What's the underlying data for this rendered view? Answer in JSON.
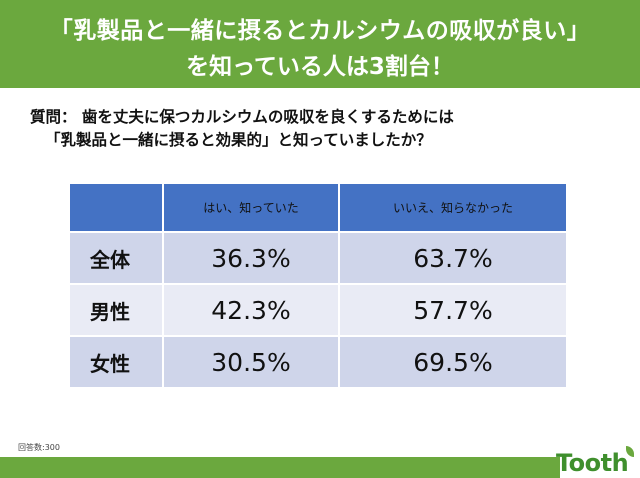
{
  "banner": {
    "line1": "「乳製品と一緒に摂るとカルシウムの吸収が良い」",
    "line2": "を知っている人は3割台！"
  },
  "question": {
    "label": "質問：",
    "line1": "歯を丈夫に保つカルシウムの吸収を良くするためには",
    "line2": "「乳製品と一緒に摂ると効果的」と知っていましたか？"
  },
  "table": {
    "headers": [
      "",
      "はい、知っていた",
      "いいえ、知らなかった"
    ],
    "rows": [
      {
        "label": "全体",
        "yes": "36.3%",
        "no": "63.7%"
      },
      {
        "label": "男性",
        "yes": "42.3%",
        "no": "57.7%"
      },
      {
        "label": "女性",
        "yes": "30.5%",
        "no": "69.5%"
      }
    ]
  },
  "footnote": "回答数:300",
  "logo": {
    "text": "Tooth",
    "color": "#3f8f2d"
  },
  "colors": {
    "banner": "#6ba83e",
    "header": "#4472c4",
    "row_dark": "#cfd5ea",
    "row_light": "#e9ebf5"
  }
}
